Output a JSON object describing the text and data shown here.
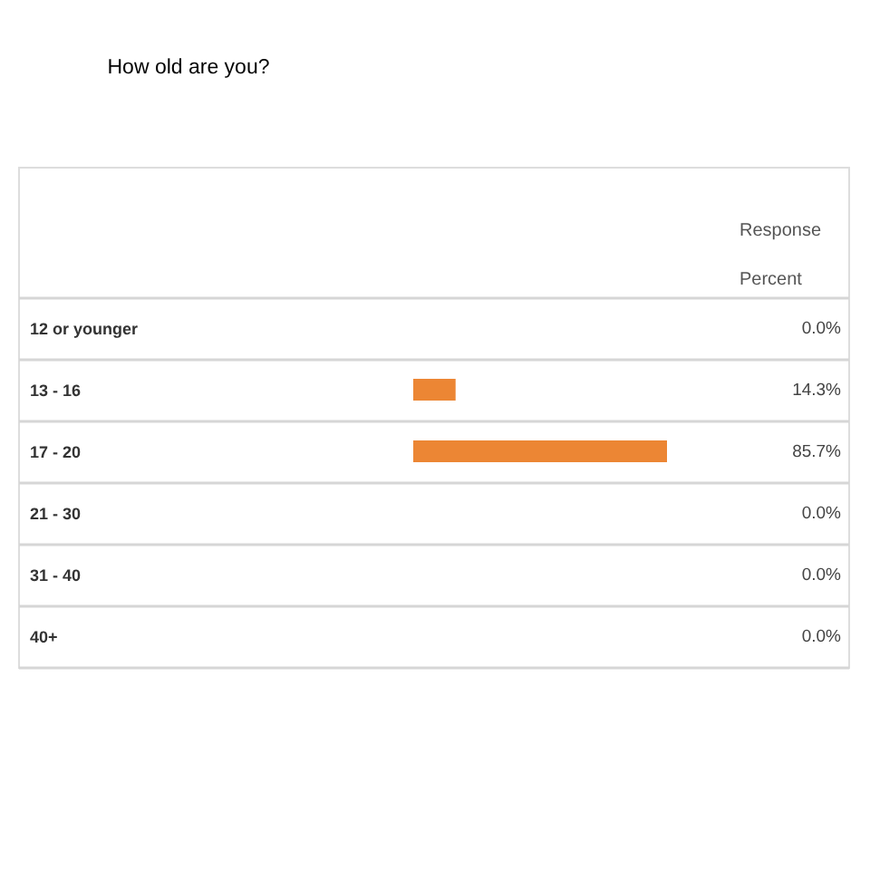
{
  "chart_data": {
    "type": "bar",
    "orientation": "horizontal",
    "title": "How old are you?",
    "categories": [
      "12 or younger",
      "13 - 16",
      "17 - 20",
      "21 - 30",
      "31 - 40",
      "40+"
    ],
    "values": [
      0,
      14.3,
      85.7,
      0,
      0,
      0
    ],
    "value_labels": [
      "0.0%",
      "14.3%",
      "85.7%",
      "0.0%",
      "0.0%",
      "0.0%"
    ],
    "color": "#ec8634",
    "grid": "y",
    "tick_labels": "y",
    "annotations": [
      "Response Percent"
    ]
  }
}
